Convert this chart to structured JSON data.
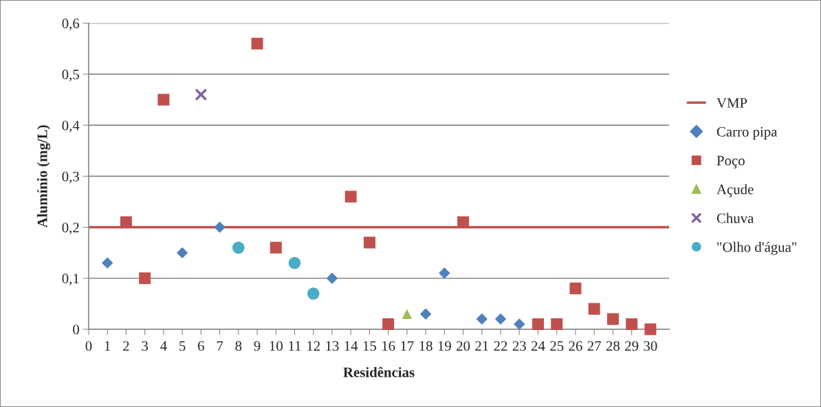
{
  "chart_data": {
    "type": "scatter",
    "xlabel": "Residências",
    "ylabel": "Alumínio (mg/L)",
    "xlim": [
      0,
      31
    ],
    "xticks": [
      0,
      1,
      2,
      3,
      4,
      5,
      6,
      7,
      8,
      9,
      10,
      11,
      12,
      13,
      14,
      15,
      16,
      17,
      18,
      19,
      20,
      21,
      22,
      23,
      24,
      25,
      26,
      27,
      28,
      29,
      30
    ],
    "ylim": [
      0,
      0.6
    ],
    "yticks": [
      {
        "value": 0,
        "label": "0"
      },
      {
        "value": 0.1,
        "label": "0,1"
      },
      {
        "value": 0.2,
        "label": "0,2"
      },
      {
        "value": 0.3,
        "label": "0,3"
      },
      {
        "value": 0.4,
        "label": "0,4"
      },
      {
        "value": 0.5,
        "label": "0,5"
      },
      {
        "value": 0.6,
        "label": "0,6"
      }
    ],
    "grid": "y",
    "legend": "right",
    "ref_lines": [
      {
        "axis": "y",
        "value": 0.2,
        "label": "VMP",
        "color": "#c0504d",
        "line_style": "solid"
      }
    ],
    "series": [
      {
        "name": "Carro pipa",
        "color": "#4f81bd",
        "marker": "diamond",
        "x": [
          1,
          5,
          7,
          13,
          18,
          19,
          21,
          22,
          23
        ],
        "values": [
          0.13,
          0.15,
          0.2,
          0.1,
          0.03,
          0.11,
          0.02,
          0.02,
          0.01
        ]
      },
      {
        "name": "Poço",
        "color": "#c0504d",
        "marker": "square",
        "x": [
          2,
          3,
          4,
          9,
          10,
          14,
          15,
          16,
          20,
          24,
          25,
          26,
          27,
          28,
          29,
          30
        ],
        "values": [
          0.21,
          0.1,
          0.45,
          0.56,
          0.16,
          0.26,
          0.17,
          0.01,
          0.21,
          0.01,
          0.01,
          0.08,
          0.04,
          0.02,
          0.01,
          0
        ]
      },
      {
        "name": "Açude",
        "color": "#9bbb59",
        "marker": "triangle",
        "x": [
          17
        ],
        "values": [
          0.03
        ]
      },
      {
        "name": "Chuva",
        "color": "#8064a2",
        "marker": "cross",
        "x": [
          6
        ],
        "values": [
          0.46
        ]
      },
      {
        "name": "\"Olho d'água\"",
        "color": "#4bacc6",
        "marker": "circle",
        "x": [
          8,
          11,
          12
        ],
        "values": [
          0.16,
          0.13,
          0.07
        ]
      }
    ]
  }
}
